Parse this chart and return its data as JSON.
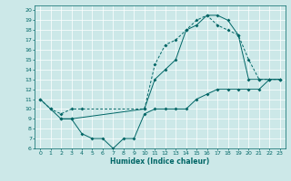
{
  "title": "",
  "xlabel": "Humidex (Indice chaleur)",
  "ylabel": "",
  "bg_color": "#cce8e8",
  "grid_color": "#ffffff",
  "line_color": "#006666",
  "xlim": [
    -0.5,
    23.5
  ],
  "ylim": [
    6,
    20.5
  ],
  "xticks": [
    0,
    1,
    2,
    3,
    4,
    5,
    6,
    7,
    8,
    9,
    10,
    11,
    12,
    13,
    14,
    15,
    16,
    17,
    18,
    19,
    20,
    21,
    22,
    23
  ],
  "yticks": [
    6,
    7,
    8,
    9,
    10,
    11,
    12,
    13,
    14,
    15,
    16,
    17,
    18,
    19,
    20
  ],
  "line1_x": [
    0,
    1,
    2,
    3,
    10,
    11,
    12,
    13,
    14,
    15,
    16,
    17,
    18,
    19,
    20,
    21,
    22,
    23
  ],
  "line1_y": [
    11,
    10,
    9,
    9,
    10,
    13,
    14,
    15,
    18,
    18.5,
    19.5,
    19.5,
    19,
    17.5,
    13,
    13,
    13,
    13
  ],
  "line2_x": [
    2,
    3,
    4,
    5,
    6,
    7,
    8,
    9,
    10,
    11,
    12,
    13,
    14,
    15,
    16,
    17,
    18,
    19,
    20,
    21,
    22,
    23
  ],
  "line2_y": [
    9,
    9,
    7.5,
    7,
    7,
    6,
    7,
    7,
    9.5,
    10,
    10,
    10,
    10,
    11,
    11.5,
    12,
    12,
    12,
    12,
    12,
    13,
    13
  ],
  "line3_x": [
    0,
    1,
    2,
    3,
    4,
    10,
    11,
    12,
    13,
    14,
    15,
    16,
    17,
    18,
    19,
    20,
    21,
    22,
    23
  ],
  "line3_y": [
    11,
    10,
    9.5,
    10,
    10,
    10,
    14.5,
    16.5,
    17,
    18,
    19,
    19.5,
    18.5,
    18,
    17.5,
    15,
    13,
    13,
    13
  ]
}
